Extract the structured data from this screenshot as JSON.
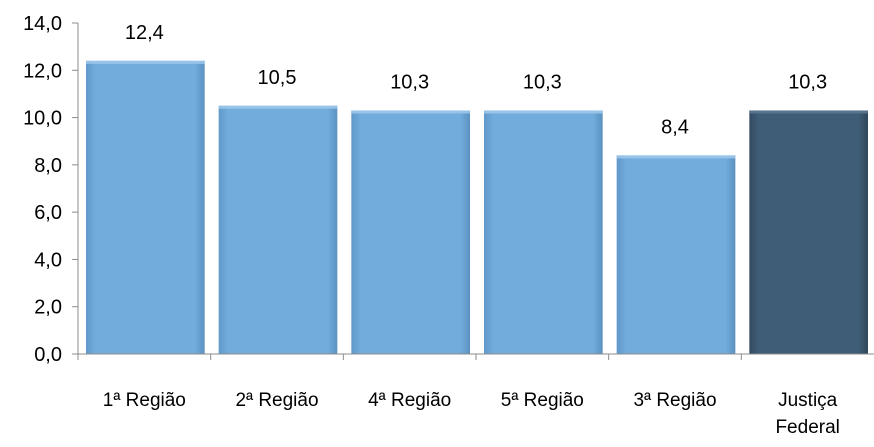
{
  "chart_data": {
    "type": "bar",
    "categories": [
      "1ª Região",
      "2ª Região",
      "4ª Região",
      "5ª Região",
      "3ª Região",
      "Justiça Federal"
    ],
    "values": [
      12.4,
      10.5,
      10.3,
      10.3,
      8.4,
      10.3
    ],
    "value_labels": [
      "12,4",
      "10,5",
      "10,3",
      "10,3",
      "8,4",
      "10,3"
    ],
    "ylim": [
      0,
      14
    ],
    "yticks": [
      0,
      2,
      4,
      6,
      8,
      10,
      12,
      14
    ],
    "ytick_labels": [
      "0,0",
      "2,0",
      "4,0",
      "6,0",
      "8,0",
      "10,0",
      "12,0",
      "14,0"
    ],
    "colors": {
      "bar": "#6ea8d8",
      "bar_highlight": "#3d5a73",
      "axis": "#8c8c8c",
      "text": "#000000"
    },
    "highlight_index": 5,
    "grid": false
  }
}
